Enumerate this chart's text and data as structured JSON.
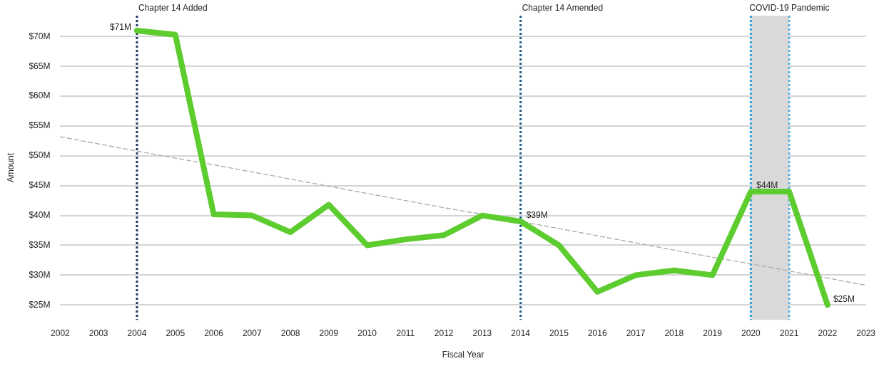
{
  "chart_data": {
    "type": "line",
    "xlabel": "Fiscal Year",
    "ylabel": "Amount",
    "categories": [
      "2002",
      "2003",
      "2004",
      "2005",
      "2006",
      "2007",
      "2008",
      "2009",
      "2010",
      "2011",
      "2012",
      "2013",
      "2014",
      "2015",
      "2016",
      "2017",
      "2018",
      "2019",
      "2020",
      "2021",
      "2022",
      "2023"
    ],
    "series": [
      {
        "color": "#5ccc2e",
        "values": [
          null,
          null,
          71,
          70.3,
          40.2,
          40,
          37.2,
          41.8,
          35,
          36,
          36.7,
          40,
          39,
          35,
          27.2,
          30,
          30.8,
          30,
          44,
          44,
          25,
          null
        ],
        "value_labels": [
          null,
          null,
          "$71M",
          null,
          null,
          null,
          null,
          null,
          null,
          null,
          null,
          null,
          "$39M",
          null,
          null,
          null,
          null,
          null,
          "$44M",
          null,
          "$25M",
          null
        ]
      },
      {
        "type": "line",
        "color": "#aaaaaa",
        "line_style": "dashed",
        "values": [
          53.2,
          52.0,
          50.8,
          49.6,
          48.5,
          47.3,
          46.1,
          44.9,
          43.7,
          42.5,
          41.3,
          40.2,
          39.0,
          37.8,
          36.6,
          35.4,
          34.2,
          33.0,
          31.9,
          30.7,
          29.5,
          28.3
        ]
      }
    ],
    "ylim": [
      22.5,
      73.5
    ],
    "yticks": [
      {
        "value": 25,
        "label": "$25M"
      },
      {
        "value": 30,
        "label": "$30M"
      },
      {
        "value": 35,
        "label": "$35M"
      },
      {
        "value": 40,
        "label": "$40M"
      },
      {
        "value": 45,
        "label": "$45M"
      },
      {
        "value": 50,
        "label": "$50M"
      },
      {
        "value": 55,
        "label": "$55M"
      },
      {
        "value": 60,
        "label": "$60M"
      },
      {
        "value": 65,
        "label": "$65M"
      },
      {
        "value": 70,
        "label": "$70M"
      }
    ],
    "grid": "y",
    "legend": false,
    "marker": "none",
    "line_style": "solid",
    "ref_lines": [
      {
        "axis": "x",
        "value": "2004",
        "label": "Chapter 14 Added",
        "color": "#1f3864",
        "line_style": "dotted"
      },
      {
        "axis": "x",
        "value": "2014",
        "label": "Chapter 14 Amended",
        "color": "#1f5f8b",
        "line_style": "dotted"
      },
      {
        "axis": "x",
        "value": "2020",
        "color": "#2e9fd6",
        "line_style": "dotted"
      },
      {
        "axis": "x",
        "value": "2021",
        "color": "#5ab4e0",
        "line_style": "dotted"
      }
    ],
    "bands": [
      {
        "axis": "x",
        "from": "2020",
        "to": "2021",
        "label": "COVID-19 Pandemic",
        "color": "#d9d9d9"
      }
    ]
  }
}
